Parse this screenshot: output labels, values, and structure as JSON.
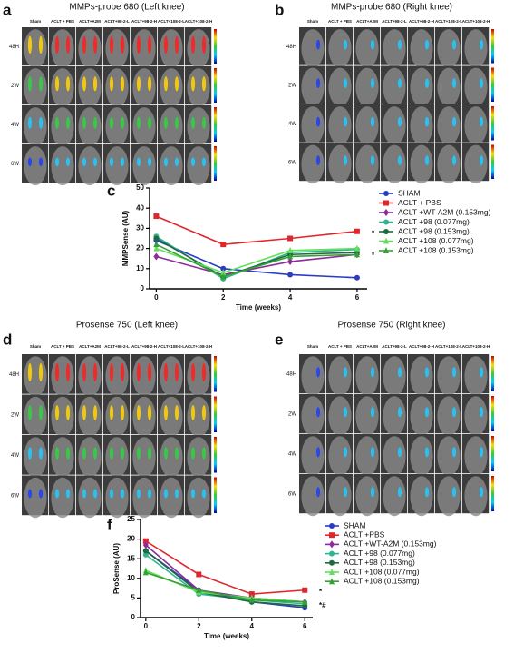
{
  "figure": {
    "panels": [
      {
        "letter": "a",
        "title": "MMPs-probe  680 (Left knee)",
        "columns": [
          "Sham",
          "ACLT + PBS",
          "ACLT+A2M",
          "ACLT+98-2-L",
          "ACLT+98-2-H",
          "ACLT+108-2-L",
          "ACLT+108-2-H"
        ],
        "rows": [
          "48H",
          "2W",
          "4W",
          "6W"
        ]
      },
      {
        "letter": "b",
        "title": "MMPs-probe  680 (Right knee)",
        "columns": [
          "Sham",
          "ACLT + PBS",
          "ACLT+A2M",
          "ACLT+98-2-L",
          "ACLT+98-2-H",
          "ACLT+108-2-L",
          "ACLT+108-2-H"
        ],
        "rows": [
          "48H",
          "2W",
          "4W",
          "6W"
        ]
      },
      {
        "letter": "d",
        "title": "Prosense  750 (Left knee)",
        "columns": [
          "Sham",
          "ACLT + PBS",
          "ACLT+A2M",
          "ACLT+98-2-L",
          "ACLT+98-2-H",
          "ACLT+108-2-L",
          "ACLT+108-2-H"
        ],
        "rows": [
          "48H",
          "2W",
          "4W",
          "6W"
        ]
      },
      {
        "letter": "e",
        "title": "Prosense  750 (Right knee)",
        "columns": [
          "Sham",
          "ACLT + PBS",
          "ACLT+A2M",
          "ACLT+98-2-L",
          "ACLT+98-2-H",
          "ACLT+108-2-L",
          "ACLT+108-2-H"
        ],
        "rows": [
          "48H",
          "2W",
          "4W",
          "6W"
        ]
      }
    ]
  },
  "chart_data": [
    {
      "type": "line",
      "letter": "c",
      "x_label": "Time (weeks)",
      "y_label": "MMPSense (AU)",
      "x": [
        0,
        2,
        4,
        6
      ],
      "xlim": [
        -0.2,
        6.3
      ],
      "xticks": [
        0,
        2,
        4,
        6
      ],
      "ylim": [
        0,
        50
      ],
      "yticks": [
        0,
        10,
        20,
        30,
        40,
        50
      ],
      "annotations": [
        "*",
        "*"
      ],
      "series": [
        {
          "name": "SHAM",
          "color": "#2a3cc4",
          "marker": "circle",
          "values": [
            24,
            10,
            7,
            5.5
          ]
        },
        {
          "name": "ACLT + PBS",
          "color": "#e0262b",
          "marker": "square",
          "values": [
            36,
            22,
            25,
            28.5
          ]
        },
        {
          "name": "ACLT +WT-A2M (0.153mg)",
          "color": "#8e2a9e",
          "marker": "diamond",
          "values": [
            16,
            7,
            13.5,
            17
          ]
        },
        {
          "name": "ACLT +98 (0.077mg)",
          "color": "#30b591",
          "marker": "circle",
          "values": [
            26,
            5,
            18,
            19.5
          ]
        },
        {
          "name": "ACLT +98 (0.153mg)",
          "color": "#1e6b3e",
          "marker": "circle",
          "values": [
            25,
            6,
            17,
            18
          ]
        },
        {
          "name": "ACLT +108 (0.077mg)",
          "color": "#62e05a",
          "marker": "triangle",
          "values": [
            20,
            8,
            19,
            20
          ]
        },
        {
          "name": "ACLT +108 (0.153mg)",
          "color": "#35a035",
          "marker": "triangle",
          "values": [
            22,
            6,
            16,
            17
          ]
        }
      ]
    },
    {
      "type": "line",
      "letter": "f",
      "x_label": "Time (weeks)",
      "y_label": "ProSense (AU)",
      "x": [
        0,
        2,
        4,
        6
      ],
      "xlim": [
        -0.2,
        6.3
      ],
      "xticks": [
        0,
        2,
        4,
        6
      ],
      "ylim": [
        0,
        25
      ],
      "yticks": [
        0,
        5,
        10,
        15,
        20,
        25
      ],
      "annotations": [
        "*",
        "*#"
      ],
      "series": [
        {
          "name": "SHAM",
          "color": "#2a3cc4",
          "marker": "circle",
          "values": [
            17,
            7,
            4,
            2.5
          ]
        },
        {
          "name": "ACLT +PBS",
          "color": "#e0262b",
          "marker": "square",
          "values": [
            19.5,
            11,
            6,
            7
          ]
        },
        {
          "name": "ACLT +WT-A2M (0.153mg)",
          "color": "#8e2a9e",
          "marker": "diamond",
          "values": [
            18.5,
            7,
            5,
            4
          ]
        },
        {
          "name": "ACLT +98 (0.077mg)",
          "color": "#30b591",
          "marker": "circle",
          "values": [
            16,
            6,
            4.5,
            3.5
          ]
        },
        {
          "name": "ACLT +98 (0.153mg)",
          "color": "#1e6b3e",
          "marker": "circle",
          "values": [
            17,
            6.5,
            4,
            3
          ]
        },
        {
          "name": "ACLT +108 (0.077mg)",
          "color": "#62e05a",
          "marker": "triangle",
          "values": [
            12,
            6.5,
            5,
            4
          ]
        },
        {
          "name": "ACLT +108 (0.153mg)",
          "color": "#35a035",
          "marker": "triangle",
          "values": [
            11.5,
            7,
            4.5,
            4
          ]
        }
      ]
    }
  ]
}
